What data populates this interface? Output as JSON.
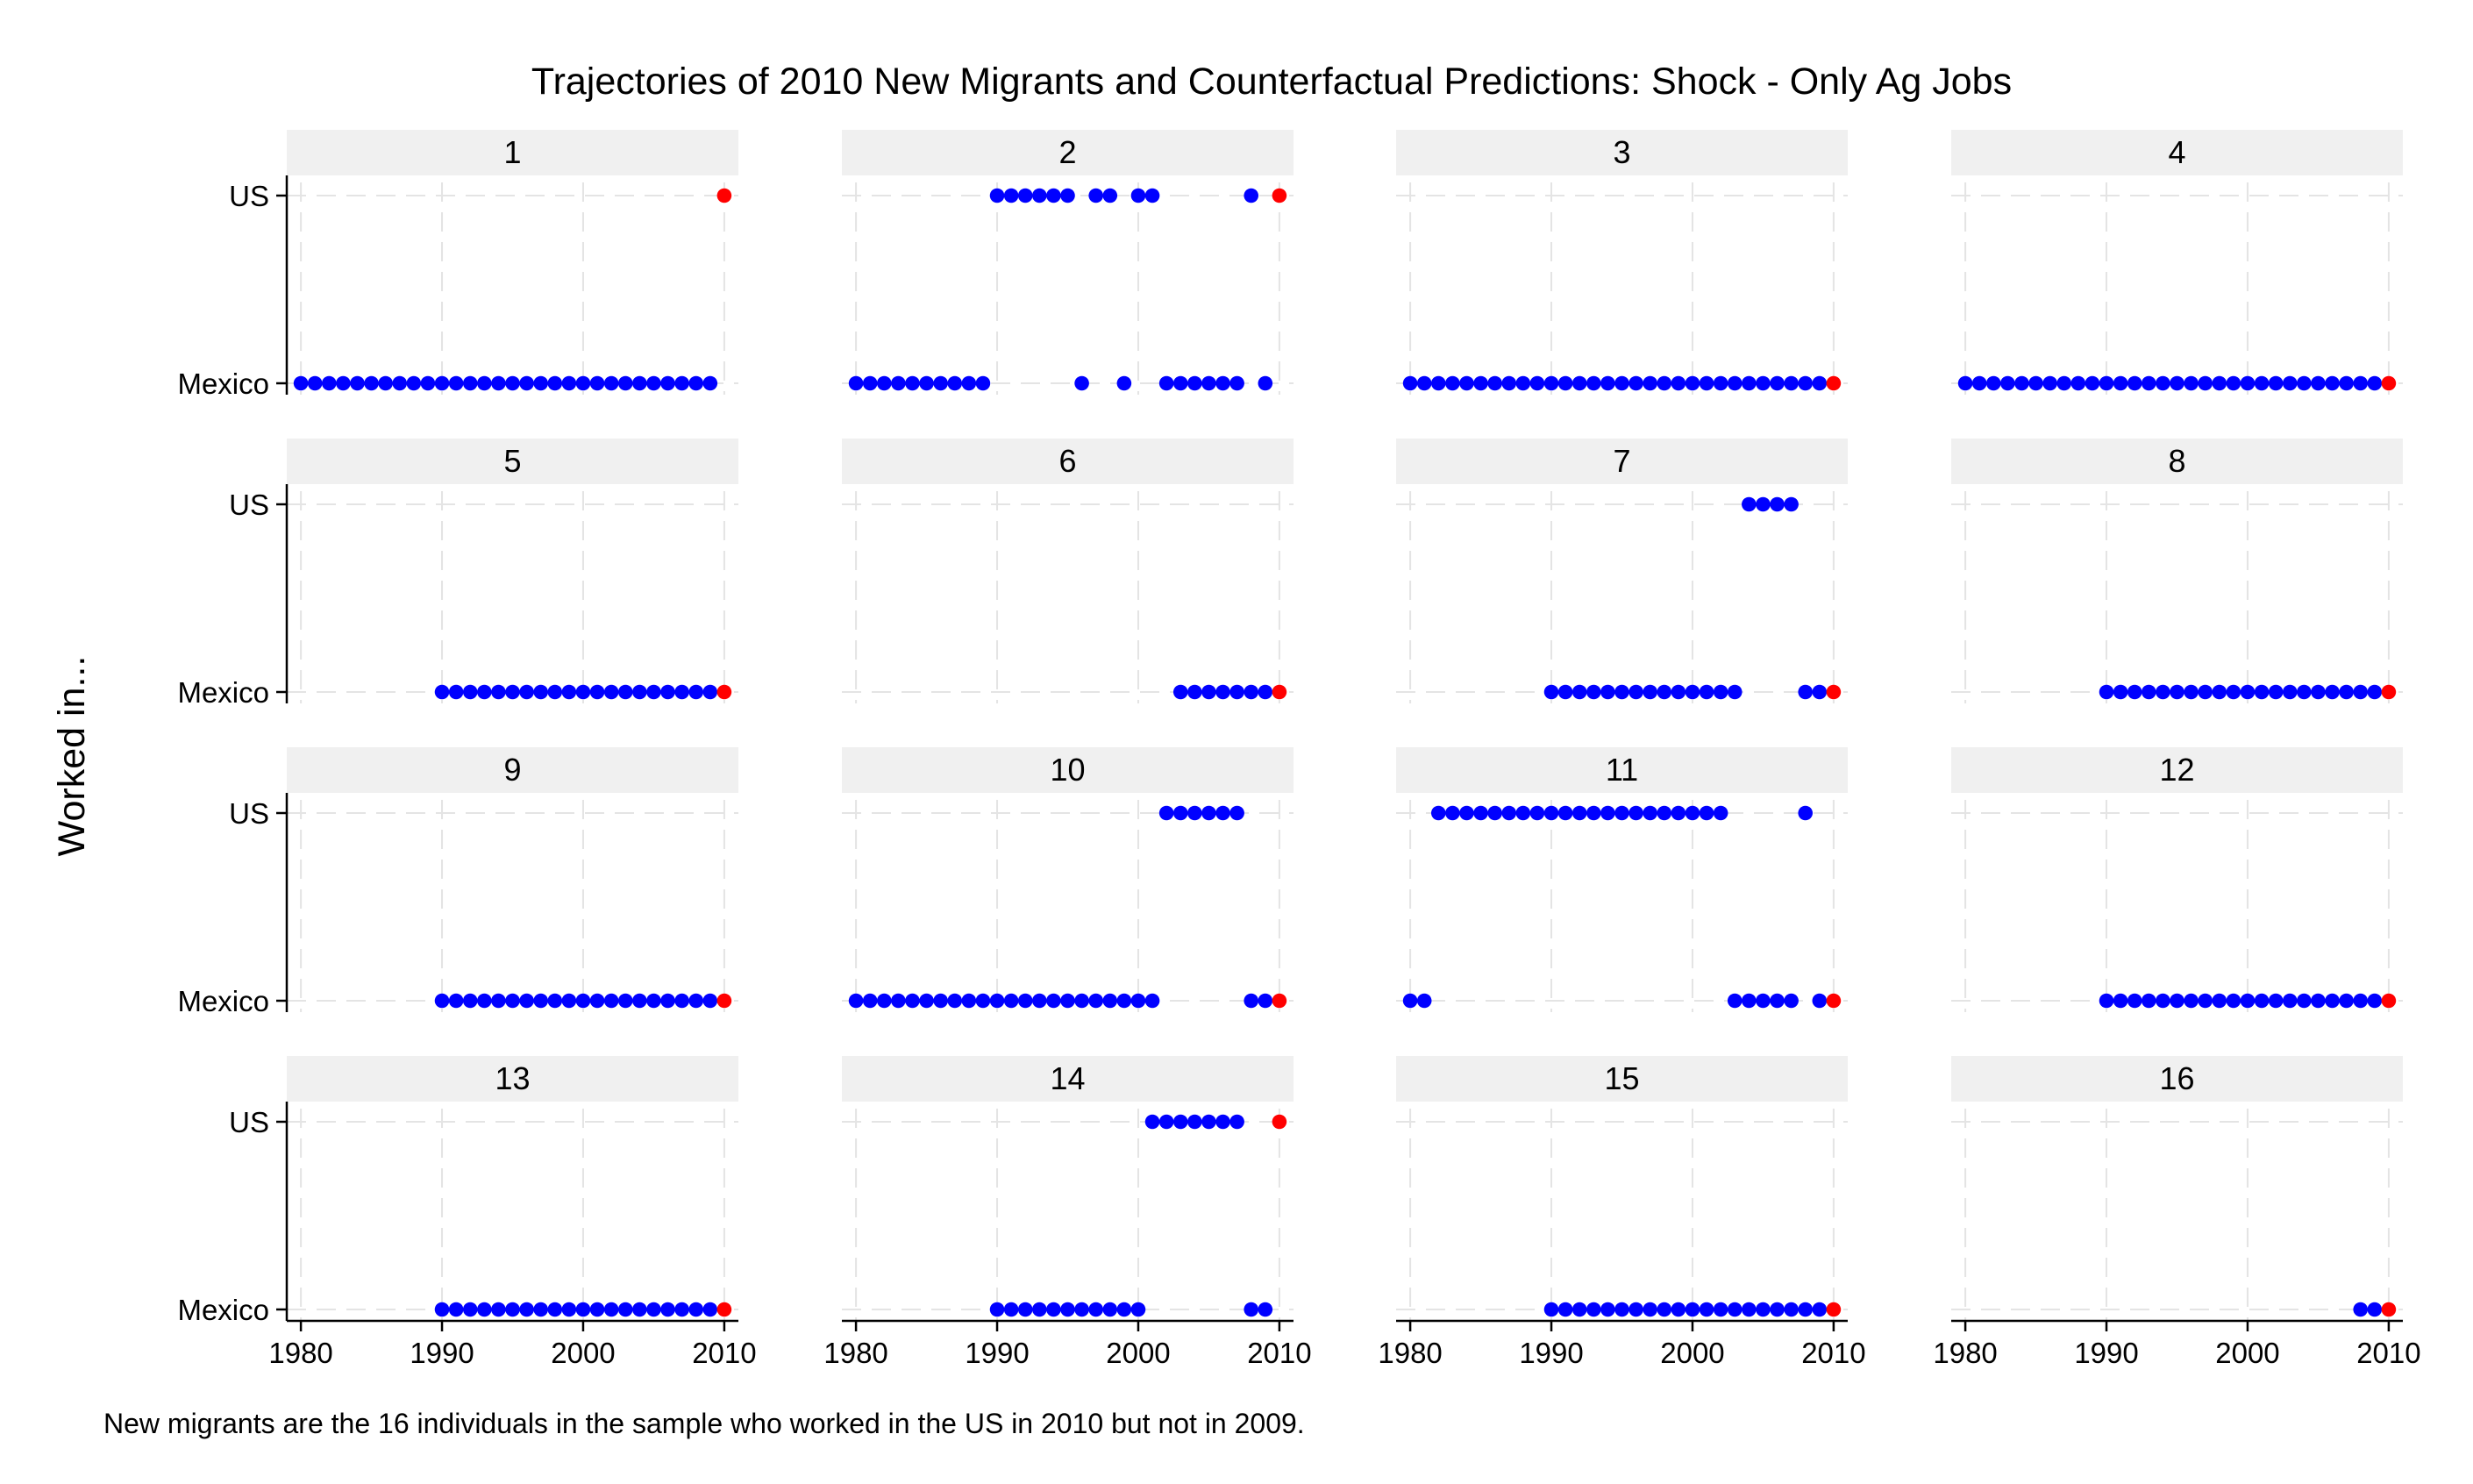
{
  "chart_data": {
    "type": "scatter",
    "title": "Trajectories of 2010 New Migrants and Counterfactual Predictions: Shock - Only Ag Jobs",
    "ylabel": "Worked in...",
    "note": "New migrants are the 16 individuals in the sample who worked in the US in 2010 but not in 2009.",
    "y_categories": [
      "Mexico",
      "US"
    ],
    "x_ticks": [
      1980,
      1990,
      2000,
      2010
    ],
    "xlim": [
      1979,
      2011
    ],
    "grid": "dashed",
    "layout": "4x4 facets",
    "colors": {
      "observed": "#0000ff",
      "counterfactual": "#ff0000",
      "header_bg": "#f0f0f0"
    },
    "series_meaning": {
      "observed": "blue points: observed location by year",
      "counterfactual": "red point: 2010 prediction"
    },
    "panels": [
      {
        "label": "1",
        "us": [],
        "mexico": [
          1980,
          1981,
          1982,
          1983,
          1984,
          1985,
          1986,
          1987,
          1988,
          1989,
          1990,
          1991,
          1992,
          1993,
          1994,
          1995,
          1996,
          1997,
          1998,
          1999,
          2000,
          2001,
          2002,
          2003,
          2004,
          2005,
          2006,
          2007,
          2008,
          2009
        ],
        "predicted": {
          "year": 2010,
          "place": "US"
        }
      },
      {
        "label": "2",
        "us": [
          1990,
          1991,
          1992,
          1993,
          1994,
          1995,
          1997,
          1998,
          2000,
          2001,
          2008
        ],
        "mexico": [
          1980,
          1981,
          1982,
          1983,
          1984,
          1985,
          1986,
          1987,
          1988,
          1989,
          1996,
          1999,
          2002,
          2003,
          2004,
          2005,
          2006,
          2007,
          2009
        ],
        "predicted": {
          "year": 2010,
          "place": "US"
        }
      },
      {
        "label": "3",
        "us": [],
        "mexico": [
          1980,
          1981,
          1982,
          1983,
          1984,
          1985,
          1986,
          1987,
          1988,
          1989,
          1990,
          1991,
          1992,
          1993,
          1994,
          1995,
          1996,
          1997,
          1998,
          1999,
          2000,
          2001,
          2002,
          2003,
          2004,
          2005,
          2006,
          2007,
          2008,
          2009
        ],
        "predicted": {
          "year": 2010,
          "place": "Mexico"
        }
      },
      {
        "label": "4",
        "us": [],
        "mexico": [
          1980,
          1981,
          1982,
          1983,
          1984,
          1985,
          1986,
          1987,
          1988,
          1989,
          1990,
          1991,
          1992,
          1993,
          1994,
          1995,
          1996,
          1997,
          1998,
          1999,
          2000,
          2001,
          2002,
          2003,
          2004,
          2005,
          2006,
          2007,
          2008,
          2009
        ],
        "predicted": {
          "year": 2010,
          "place": "Mexico"
        }
      },
      {
        "label": "5",
        "us": [],
        "mexico": [
          1990,
          1991,
          1992,
          1993,
          1994,
          1995,
          1996,
          1997,
          1998,
          1999,
          2000,
          2001,
          2002,
          2003,
          2004,
          2005,
          2006,
          2007,
          2008,
          2009
        ],
        "predicted": {
          "year": 2010,
          "place": "Mexico"
        }
      },
      {
        "label": "6",
        "us": [],
        "mexico": [
          2003,
          2004,
          2005,
          2006,
          2007,
          2008,
          2009
        ],
        "predicted": {
          "year": 2010,
          "place": "Mexico"
        }
      },
      {
        "label": "7",
        "us": [
          2004,
          2005,
          2006,
          2007
        ],
        "mexico": [
          1990,
          1991,
          1992,
          1993,
          1994,
          1995,
          1996,
          1997,
          1998,
          1999,
          2000,
          2001,
          2002,
          2003,
          2008,
          2009
        ],
        "predicted": {
          "year": 2010,
          "place": "Mexico"
        }
      },
      {
        "label": "8",
        "us": [],
        "mexico": [
          1990,
          1991,
          1992,
          1993,
          1994,
          1995,
          1996,
          1997,
          1998,
          1999,
          2000,
          2001,
          2002,
          2003,
          2004,
          2005,
          2006,
          2007,
          2008,
          2009
        ],
        "predicted": {
          "year": 2010,
          "place": "Mexico"
        }
      },
      {
        "label": "9",
        "us": [],
        "mexico": [
          1990,
          1991,
          1992,
          1993,
          1994,
          1995,
          1996,
          1997,
          1998,
          1999,
          2000,
          2001,
          2002,
          2003,
          2004,
          2005,
          2006,
          2007,
          2008,
          2009
        ],
        "predicted": {
          "year": 2010,
          "place": "Mexico"
        }
      },
      {
        "label": "10",
        "us": [
          2002,
          2003,
          2004,
          2005,
          2006,
          2007
        ],
        "mexico": [
          1980,
          1981,
          1982,
          1983,
          1984,
          1985,
          1986,
          1987,
          1988,
          1989,
          1990,
          1991,
          1992,
          1993,
          1994,
          1995,
          1996,
          1997,
          1998,
          1999,
          2000,
          2001,
          2008,
          2009
        ],
        "predicted": {
          "year": 2010,
          "place": "Mexico"
        }
      },
      {
        "label": "11",
        "us": [
          1982,
          1983,
          1984,
          1985,
          1986,
          1987,
          1988,
          1989,
          1990,
          1991,
          1992,
          1993,
          1994,
          1995,
          1996,
          1997,
          1998,
          1999,
          2000,
          2001,
          2002,
          2008
        ],
        "mexico": [
          1980,
          1981,
          2003,
          2004,
          2005,
          2006,
          2007,
          2009
        ],
        "predicted": {
          "year": 2010,
          "place": "Mexico"
        }
      },
      {
        "label": "12",
        "us": [],
        "mexico": [
          1990,
          1991,
          1992,
          1993,
          1994,
          1995,
          1996,
          1997,
          1998,
          1999,
          2000,
          2001,
          2002,
          2003,
          2004,
          2005,
          2006,
          2007,
          2008,
          2009
        ],
        "predicted": {
          "year": 2010,
          "place": "Mexico"
        }
      },
      {
        "label": "13",
        "us": [],
        "mexico": [
          1990,
          1991,
          1992,
          1993,
          1994,
          1995,
          1996,
          1997,
          1998,
          1999,
          2000,
          2001,
          2002,
          2003,
          2004,
          2005,
          2006,
          2007,
          2008,
          2009
        ],
        "predicted": {
          "year": 2010,
          "place": "Mexico"
        }
      },
      {
        "label": "14",
        "us": [
          2001,
          2002,
          2003,
          2004,
          2005,
          2006,
          2007
        ],
        "mexico": [
          1990,
          1991,
          1992,
          1993,
          1994,
          1995,
          1996,
          1997,
          1998,
          1999,
          2000,
          2008,
          2009
        ],
        "predicted": {
          "year": 2010,
          "place": "US"
        }
      },
      {
        "label": "15",
        "us": [],
        "mexico": [
          1990,
          1991,
          1992,
          1993,
          1994,
          1995,
          1996,
          1997,
          1998,
          1999,
          2000,
          2001,
          2002,
          2003,
          2004,
          2005,
          2006,
          2007,
          2008,
          2009
        ],
        "predicted": {
          "year": 2010,
          "place": "Mexico"
        }
      },
      {
        "label": "16",
        "us": [],
        "mexico": [
          2008,
          2009
        ],
        "predicted": {
          "year": 2010,
          "place": "Mexico"
        }
      }
    ]
  }
}
